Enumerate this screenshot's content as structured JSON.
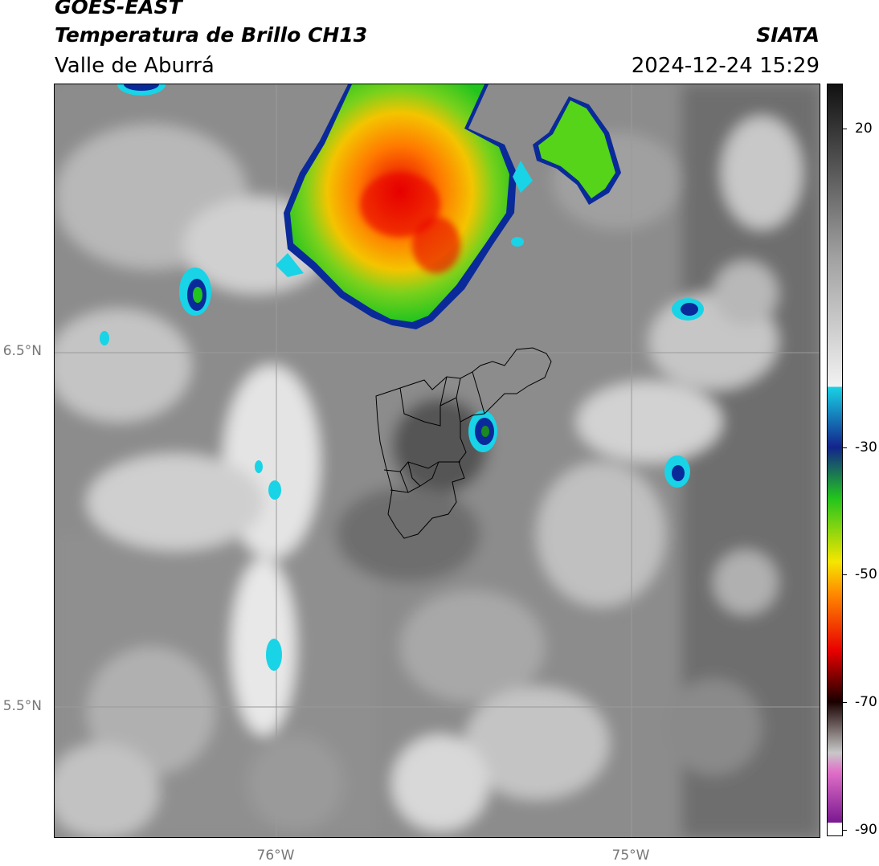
{
  "header": {
    "title": "GOES-EAST",
    "subtitle": "Temperatura de Brillo CH13",
    "region": "Valle de Aburrá",
    "org": "SIATA",
    "datetime": "2024-12-24 15:29"
  },
  "map": {
    "lat_labels": [
      "6.5°N",
      "5.5°N"
    ],
    "lon_labels": [
      "76°W",
      "75°W"
    ],
    "lat_values": [
      6.5,
      5.5
    ],
    "lon_values": [
      -76,
      -75
    ],
    "lat_range": [
      5.125,
      7.25
    ],
    "lon_range": [
      -76.625,
      -74.46
    ]
  },
  "colorbar": {
    "range": [
      -91,
      27
    ],
    "tick_labels": [
      "20",
      "-30",
      "-50",
      "-70",
      "-90"
    ],
    "tick_values": [
      20,
      -30,
      -50,
      -70,
      -90
    ],
    "colors": {
      "warm_top": "#111111",
      "warm_bottom": "#f2f2f2",
      "cyan": "#19d3e6",
      "blue": "#12248c",
      "green": "#22c41e",
      "yellow": "#f5e600",
      "orange": "#ff8a00",
      "red": "#e80000",
      "dark": "#1a0000",
      "gray_light": "#c8c8c8",
      "pink": "#e070c8",
      "purple": "#7a1890"
    }
  }
}
